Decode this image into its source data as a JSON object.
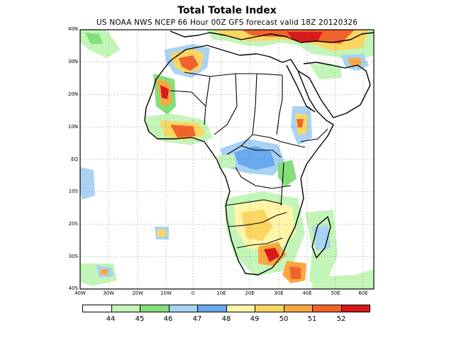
{
  "title": "Total Totale Index",
  "subtitle": "US NOAA NWS NCEP 66 Hour 00Z GFS forecast valid 18Z 20120326",
  "map": {
    "latitude_labels": [
      "40N",
      "30N",
      "20N",
      "10N",
      "EQ",
      "10S",
      "20S",
      "30S",
      "40S"
    ],
    "longitude_labels": [
      "40W",
      "30W",
      "20W",
      "10W",
      "0",
      "10E",
      "20E",
      "30E",
      "40E",
      "50E",
      "60E"
    ],
    "grid": "dotted",
    "region": "Africa"
  },
  "legend": {
    "labels": [
      "44",
      "45",
      "46",
      "47",
      "48",
      "49",
      "50",
      "51",
      "52"
    ],
    "colors": [
      "#ffffff",
      "#c4f5b8",
      "#84de7a",
      "#a9d3f3",
      "#6aa9ee",
      "#fff5a8",
      "#fcd662",
      "#fba73f",
      "#f2632b",
      "#d7191c"
    ]
  },
  "colors": {
    "land_outline": "#000000",
    "grid": "#808080"
  }
}
